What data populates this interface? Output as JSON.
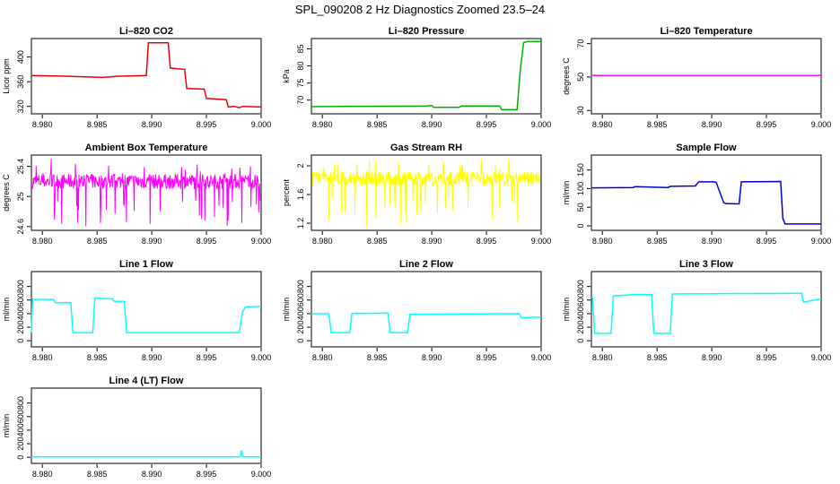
{
  "title": "SPL_090208  2 Hz Diagnostics Zoomed 23.5–24",
  "chart_data": [
    {
      "id": "co2",
      "type": "line",
      "title": "Li–820 CO2",
      "ylabel": "Licor ppm",
      "color": "#e8000b",
      "xlim": [
        8.979,
        9.0
      ],
      "ylim": [
        308,
        430
      ],
      "xticks": [
        "8.980",
        "8.985",
        "8.990",
        "8.995",
        "9.000"
      ],
      "yticks": [
        320,
        360,
        400
      ],
      "x": [
        8.979,
        8.982,
        8.9855,
        8.987,
        8.9895,
        8.9897,
        8.9915,
        8.9917,
        8.993,
        8.9932,
        8.9948,
        8.995,
        8.9968,
        8.997,
        8.9975,
        8.998,
        8.9983,
        9.0
      ],
      "values": [
        370,
        369,
        367,
        369,
        370,
        423,
        423,
        382,
        380,
        349,
        348,
        333,
        331,
        319,
        320,
        318,
        320,
        319
      ]
    },
    {
      "id": "pressure",
      "type": "line",
      "title": "Li–820 Pressure",
      "ylabel": "kPa",
      "color": "#00b000",
      "xlim": [
        8.979,
        9.0
      ],
      "ylim": [
        66,
        88
      ],
      "xticks": [
        "8.980",
        "8.985",
        "8.990",
        "8.995",
        "9.000"
      ],
      "yticks": [
        70,
        75,
        80,
        85
      ],
      "x": [
        8.979,
        8.983,
        8.9895,
        8.99,
        8.9902,
        8.9925,
        8.9927,
        8.9962,
        8.9964,
        8.9978,
        8.9981,
        8.9984,
        8.9987,
        9.0
      ],
      "values": [
        68.1,
        68.2,
        68.3,
        68.4,
        67.9,
        67.9,
        68.3,
        68.3,
        67.2,
        67.2,
        79,
        86.8,
        87.1,
        87.1
      ]
    },
    {
      "id": "temperature",
      "type": "line",
      "title": "Li–820 Temperature",
      "ylabel": "degrees C",
      "color": "#ff00ff",
      "xlim": [
        8.979,
        9.0
      ],
      "ylim": [
        28,
        73
      ],
      "xticks": [
        "8.980",
        "8.985",
        "8.990",
        "8.995",
        "9.000"
      ],
      "yticks": [
        30,
        50,
        70
      ],
      "x": [
        8.979,
        9.0
      ],
      "values": [
        51,
        51
      ]
    },
    {
      "id": "ambient",
      "type": "line",
      "title": "Ambient Box Temperature",
      "ylabel": "degrees C",
      "color": "#ff00ff",
      "xlim": [
        8.979,
        9.0
      ],
      "ylim": [
        24.55,
        25.55
      ],
      "xticks": [
        "8.980",
        "8.985",
        "8.990",
        "8.995",
        "9.000"
      ],
      "yticks": [
        24.6,
        25.0,
        25.4
      ],
      "noise": {
        "base": 25.2,
        "amplitude": 0.1,
        "spike_low": 24.6,
        "spike_high": 25.5,
        "count": 500,
        "seed": 7
      }
    },
    {
      "id": "rh",
      "type": "line",
      "title": "Gas Stream RH",
      "ylabel": "percent",
      "color": "#ffff00",
      "xlim": [
        8.979,
        9.0
      ],
      "ylim": [
        1.1,
        2.15
      ],
      "xticks": [
        "8.980",
        "8.985",
        "8.990",
        "8.995",
        "9.000"
      ],
      "yticks": [
        1.2,
        1.6,
        2.0
      ],
      "noise": {
        "base": 1.82,
        "amplitude": 0.1,
        "spike_low": 1.15,
        "spike_high": 2.1,
        "count": 500,
        "seed": 13
      }
    },
    {
      "id": "sample",
      "type": "line",
      "title": "Sample Flow",
      "ylabel": "ml/min",
      "color": "#0000cc",
      "xlim": [
        8.979,
        9.0
      ],
      "ylim": [
        -12,
        190
      ],
      "xticks": [
        "8.980",
        "8.985",
        "8.990",
        "8.995",
        "9.000"
      ],
      "yticks": [
        0,
        50,
        100,
        150
      ],
      "x": [
        8.979,
        8.9828,
        8.983,
        8.986,
        8.9862,
        8.9885,
        8.9888,
        8.9902,
        8.9904,
        8.9911,
        8.9913,
        8.9925,
        8.9927,
        8.9963,
        8.9965,
        8.9967,
        9.0
      ],
      "values": [
        102,
        103,
        105,
        103,
        106,
        107,
        118,
        118,
        117,
        62,
        60,
        59,
        118,
        119,
        20,
        5,
        5
      ]
    },
    {
      "id": "line1",
      "type": "line",
      "title": "Line 1 Flow",
      "ylabel": "ml/min",
      "color": "#00ffff",
      "xlim": [
        8.979,
        9.0
      ],
      "ylim": [
        -90,
        1020
      ],
      "xticks": [
        "8.980",
        "8.985",
        "8.990",
        "8.995",
        "9.000"
      ],
      "yticks": [
        0,
        200,
        400,
        600,
        800
      ],
      "x": [
        8.979,
        8.9791,
        8.981,
        8.9812,
        8.9826,
        8.9828,
        8.9846,
        8.9848,
        8.9864,
        8.9866,
        8.9875,
        8.9877,
        8.998,
        8.9983,
        8.9986,
        9.0
      ],
      "values": [
        120,
        610,
        610,
        560,
        560,
        120,
        120,
        630,
        620,
        580,
        580,
        120,
        120,
        430,
        500,
        510
      ]
    },
    {
      "id": "line2",
      "type": "line",
      "title": "Line 2 Flow",
      "ylabel": "ml/min",
      "color": "#00ffff",
      "xlim": [
        8.979,
        9.0
      ],
      "ylim": [
        -90,
        1020
      ],
      "xticks": [
        "8.980",
        "8.985",
        "8.990",
        "8.995",
        "9.000"
      ],
      "yticks": [
        0,
        200,
        400,
        600,
        800
      ],
      "x": [
        8.979,
        8.9806,
        8.9808,
        8.9825,
        8.9827,
        8.986,
        8.9862,
        8.9878,
        8.988,
        8.998,
        8.9982,
        9.0
      ],
      "values": [
        400,
        400,
        120,
        120,
        400,
        410,
        120,
        120,
        390,
        400,
        340,
        350
      ]
    },
    {
      "id": "line3",
      "type": "line",
      "title": "Line 3 Flow",
      "ylabel": "ml/min",
      "color": "#00ffff",
      "xlim": [
        8.979,
        9.0
      ],
      "ylim": [
        -90,
        1020
      ],
      "xticks": [
        "8.980",
        "8.985",
        "8.990",
        "8.995",
        "9.000"
      ],
      "yticks": [
        0,
        200,
        400,
        600,
        800
      ],
      "x": [
        8.979,
        8.9791,
        8.9793,
        8.9808,
        8.981,
        8.9828,
        8.9845,
        8.9847,
        8.9862,
        8.9864,
        8.9982,
        8.9984,
        9.0
      ],
      "values": [
        640,
        640,
        110,
        110,
        660,
        680,
        680,
        110,
        110,
        690,
        700,
        570,
        620
      ]
    },
    {
      "id": "line4",
      "type": "line",
      "title": "Line 4 (LT) Flow",
      "ylabel": "ml/min",
      "color": "#00ffff",
      "xlim": [
        8.979,
        9.0
      ],
      "ylim": [
        -90,
        1020
      ],
      "xticks": [
        "8.980",
        "8.985",
        "8.990",
        "8.995",
        "9.000"
      ],
      "yticks": [
        0,
        200,
        400,
        600,
        800
      ],
      "x": [
        8.979,
        8.9981,
        8.9982,
        8.9983,
        8.9985,
        9.0
      ],
      "values": [
        5,
        5,
        100,
        10,
        5,
        5
      ]
    }
  ]
}
